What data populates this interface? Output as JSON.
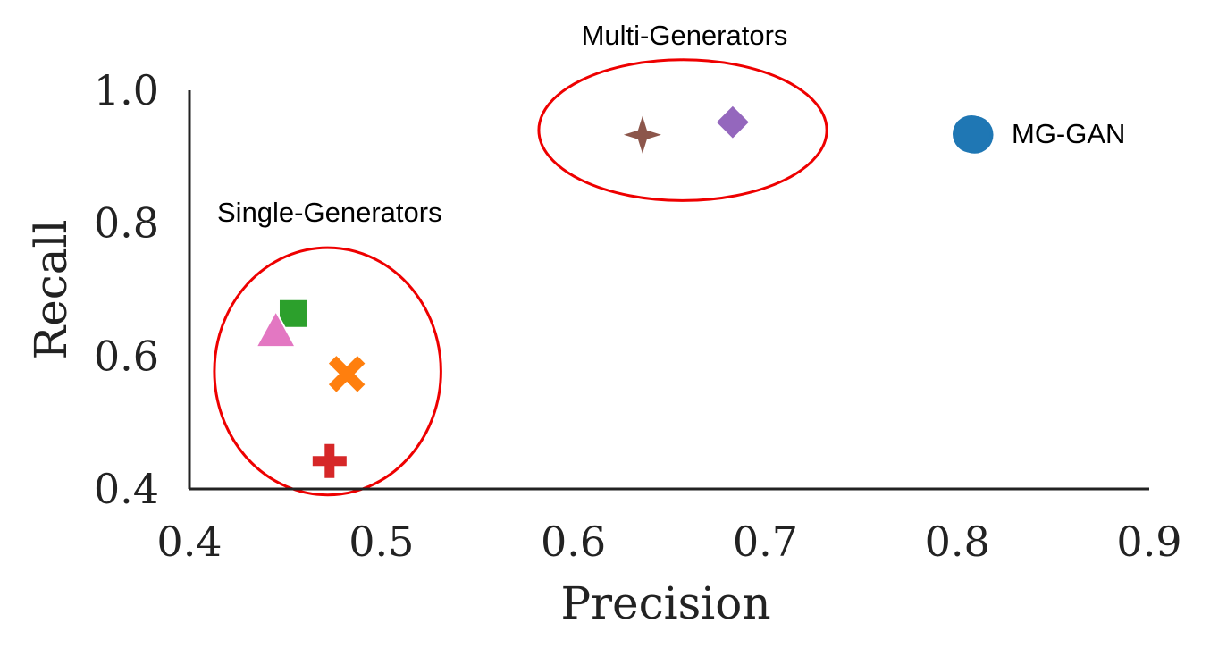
{
  "chart_data": {
    "type": "scatter",
    "xlabel": "Precision",
    "ylabel": "Recall",
    "xlim": [
      0.4,
      0.9
    ],
    "ylim": [
      0.4,
      1.0
    ],
    "xticks": [
      "0.4",
      "0.5",
      "0.6",
      "0.7",
      "0.8",
      "0.9"
    ],
    "yticks": [
      "0.4",
      "0.6",
      "0.8",
      "1.0"
    ],
    "grid": false,
    "legend": {
      "position": "top-right",
      "entries": [
        {
          "label": "MG-GAN",
          "color": "#1f77b4",
          "marker": "circle"
        }
      ]
    },
    "points": [
      {
        "x": 0.809,
        "y": 0.933,
        "color": "#1f77b4",
        "marker": "circle"
      },
      {
        "x": 0.683,
        "y": 0.952,
        "color": "#9467bd",
        "marker": "diamond"
      },
      {
        "x": 0.636,
        "y": 0.933,
        "color": "#8c564b",
        "marker": "star4"
      },
      {
        "x": 0.454,
        "y": 0.664,
        "color": "#2ca02c",
        "marker": "square"
      },
      {
        "x": 0.445,
        "y": 0.638,
        "color": "#e377c2",
        "marker": "triangle"
      },
      {
        "x": 0.482,
        "y": 0.573,
        "color": "#ff7f0e",
        "marker": "x"
      },
      {
        "x": 0.473,
        "y": 0.442,
        "color": "#d62728",
        "marker": "plus"
      }
    ],
    "annotations": [
      {
        "label": "Multi-Generators",
        "group": "multi",
        "cx": 0.657,
        "cy": 0.94,
        "rx": 0.075,
        "ry": 0.106,
        "color": "#ee0000"
      },
      {
        "label": "Single-Generators",
        "group": "single",
        "cx": 0.472,
        "cy": 0.577,
        "rx": 0.059,
        "ry": 0.186,
        "color": "#ee0000"
      }
    ]
  }
}
